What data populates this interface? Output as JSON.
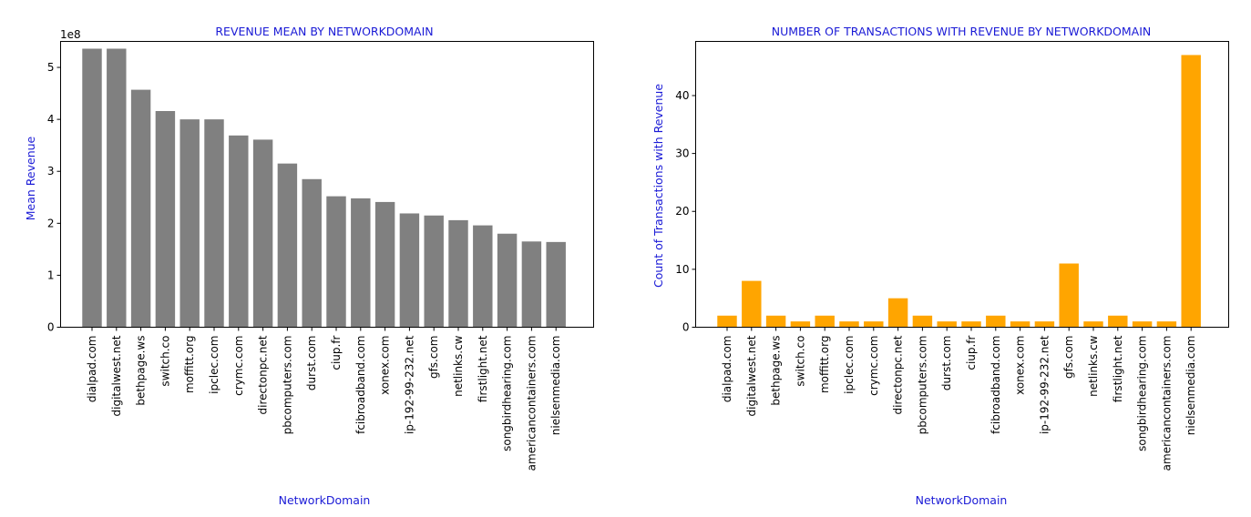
{
  "chart_data": [
    {
      "type": "bar",
      "title": "REVENUE MEAN BY NETWORKDOMAIN",
      "xlabel": "NetworkDomain",
      "ylabel": "Mean Revenue",
      "scale_label": "1e8",
      "ylim": [
        0,
        5.5
      ],
      "yticks": [
        0,
        1,
        2,
        3,
        4,
        5
      ],
      "bar_color": "#808080",
      "categories": [
        "dialpad.com",
        "digitalwest.net",
        "bethpage.ws",
        "switch.co",
        "moffitt.org",
        "ipclec.com",
        "crymc.com",
        "directonpc.net",
        "pbcomputers.com",
        "durst.com",
        "ciup.fr",
        "fcibroadband.com",
        "xonex.com",
        "ip-192-99-232.net",
        "gfs.com",
        "netlinks.cw",
        "firstlight.net",
        "songbirdhearing.com",
        "americancontainers.com",
        "nielsenmedia.com"
      ],
      "values": [
        5.36,
        5.36,
        4.57,
        4.16,
        4.0,
        4.0,
        3.69,
        3.61,
        3.15,
        2.85,
        2.52,
        2.48,
        2.41,
        2.19,
        2.15,
        2.06,
        1.96,
        1.8,
        1.65,
        1.64
      ]
    },
    {
      "type": "bar",
      "title": "NUMBER OF TRANSACTIONS WITH REVENUE BY NETWORKDOMAIN",
      "xlabel": "NetworkDomain",
      "ylabel": "Count of Transactions with Revenue",
      "ylim": [
        0,
        49.35
      ],
      "yticks": [
        0,
        10,
        20,
        30,
        40
      ],
      "bar_color": "#ffa500",
      "categories": [
        "dialpad.com",
        "digitalwest.net",
        "bethpage.ws",
        "switch.co",
        "moffitt.org",
        "ipclec.com",
        "crymc.com",
        "directonpc.net",
        "pbcomputers.com",
        "durst.com",
        "ciup.fr",
        "fcibroadband.com",
        "xonex.com",
        "ip-192-99-232.net",
        "gfs.com",
        "netlinks.cw",
        "firstlight.net",
        "songbirdhearing.com",
        "americancontainers.com",
        "nielsenmedia.com"
      ],
      "values": [
        2,
        8,
        2,
        1,
        2,
        1,
        1,
        5,
        2,
        1,
        1,
        2,
        1,
        1,
        11,
        1,
        2,
        1,
        1,
        47
      ]
    }
  ]
}
